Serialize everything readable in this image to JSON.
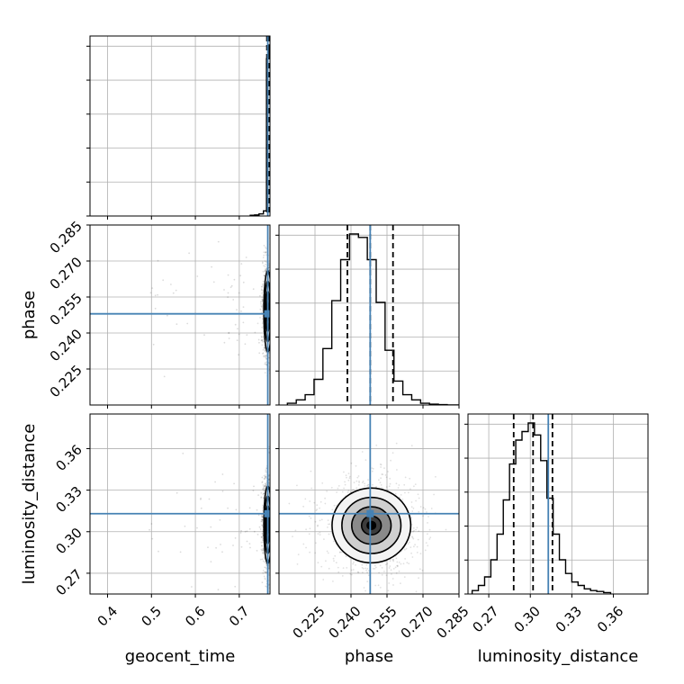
{
  "chart_data": {
    "type": "corner",
    "title": "",
    "parameters": [
      {
        "name": "geocent_time",
        "label": "geocent_time",
        "range": [
          0.36,
          0.77
        ],
        "ticks": [
          "0.4",
          "0.5",
          "0.6",
          "0.7"
        ],
        "truth": 0.765,
        "quantiles": [
          0.763,
          0.766,
          0.768
        ]
      },
      {
        "name": "phase",
        "label": "phase",
        "range": [
          0.21,
          0.285
        ],
        "ticks": [
          "0.225",
          "0.240",
          "0.255",
          "0.270",
          "0.285"
        ],
        "truth": 0.248,
        "quantiles": [
          0.2385,
          0.248,
          0.2575
        ]
      },
      {
        "name": "luminosity_distance",
        "label": "luminosity_distance",
        "range": [
          0.255,
          0.385
        ],
        "ticks": [
          "0.27",
          "0.30",
          "0.33",
          "0.36"
        ],
        "truth": 0.313,
        "quantiles": [
          0.288,
          0.302,
          0.316
        ]
      }
    ],
    "histograms": [
      {
        "param": "geocent_time",
        "bin_edges": [
          0.725,
          0.735,
          0.745,
          0.755,
          0.762,
          0.768,
          0.772
        ],
        "counts": [
          0.004,
          0.006,
          0.012,
          0.03,
          0.92,
          1.0
        ]
      },
      {
        "param": "phase",
        "bin_edges": [
          0.2135,
          0.2172,
          0.2209,
          0.2246,
          0.2283,
          0.232,
          0.2357,
          0.2394,
          0.2431,
          0.2468,
          0.2505,
          0.2542,
          0.2579,
          0.2616,
          0.2653,
          0.269,
          0.2727,
          0.2764,
          0.2801,
          0.285
        ],
        "counts": [
          0.01,
          0.03,
          0.06,
          0.15,
          0.33,
          0.61,
          0.85,
          1.0,
          0.98,
          0.85,
          0.6,
          0.32,
          0.14,
          0.06,
          0.03,
          0.01,
          0.005,
          0.002,
          0.0
        ]
      },
      {
        "param": "luminosity_distance",
        "bin_edges": [
          0.258,
          0.2625,
          0.267,
          0.2715,
          0.276,
          0.2805,
          0.285,
          0.2895,
          0.294,
          0.2985,
          0.303,
          0.3075,
          0.312,
          0.3165,
          0.321,
          0.3255,
          0.33,
          0.3345,
          0.339,
          0.3435,
          0.348,
          0.353,
          0.358
        ],
        "counts": [
          0.02,
          0.05,
          0.1,
          0.2,
          0.35,
          0.55,
          0.76,
          0.9,
          0.95,
          1.0,
          0.93,
          0.78,
          0.56,
          0.35,
          0.2,
          0.12,
          0.07,
          0.05,
          0.03,
          0.02,
          0.015,
          0.008
        ]
      }
    ],
    "joint": [
      {
        "x": "geocent_time",
        "y": "phase",
        "center": [
          0.765,
          0.249
        ],
        "sigma": [
          0.0045,
          0.0085
        ]
      },
      {
        "x": "geocent_time",
        "y": "luminosity_distance",
        "center": [
          0.765,
          0.305
        ],
        "sigma": [
          0.0045,
          0.014
        ]
      },
      {
        "x": "phase",
        "y": "luminosity_distance",
        "center": [
          0.2485,
          0.3045
        ],
        "sigma": [
          0.0082,
          0.0135
        ]
      }
    ],
    "contour_levels": [
      0.5,
      1.0,
      1.5,
      2.0
    ],
    "truth_color": "#4682b4",
    "grid": true
  }
}
